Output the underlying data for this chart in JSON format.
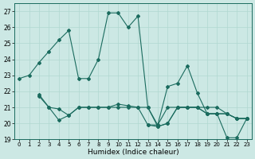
{
  "xlabel": "Humidex (Indice chaleur)",
  "bg_color": "#cce8e4",
  "line_color": "#1a6b5e",
  "grid_color": "#b0d8d0",
  "ylim": [
    19,
    27.5
  ],
  "xlim": [
    -0.5,
    23.5
  ],
  "yticks": [
    19,
    20,
    21,
    22,
    23,
    24,
    25,
    26,
    27
  ],
  "xticks": [
    0,
    1,
    2,
    3,
    4,
    5,
    6,
    7,
    8,
    9,
    10,
    11,
    12,
    13,
    14,
    15,
    16,
    17,
    18,
    19,
    20,
    21,
    22,
    23
  ],
  "series": [
    {
      "x": [
        0,
        1,
        2,
        3,
        4,
        5,
        6,
        7,
        8,
        9,
        10,
        11,
        12,
        13,
        14,
        15,
        16,
        17,
        18,
        19,
        20,
        21,
        22,
        23
      ],
      "y": [
        22.8,
        23.0,
        23.8,
        24.5,
        25.2,
        25.8,
        22.8,
        22.8,
        24.0,
        26.9,
        26.9,
        26.0,
        26.7,
        21.0,
        19.8,
        20.0,
        21.0,
        21.0,
        21.0,
        21.0,
        21.0,
        20.6,
        20.3,
        20.3
      ]
    },
    {
      "x": [
        2,
        3,
        4,
        5,
        6,
        7,
        8,
        9,
        10,
        11,
        12,
        13,
        14,
        15,
        16,
        17,
        18,
        19,
        20,
        21,
        22,
        23
      ],
      "y": [
        21.8,
        21.0,
        20.2,
        20.5,
        21.0,
        21.0,
        21.0,
        21.0,
        21.0,
        21.0,
        21.0,
        19.9,
        19.9,
        21.0,
        21.0,
        21.0,
        21.0,
        20.6,
        20.6,
        20.6,
        20.3,
        20.3
      ]
    },
    {
      "x": [
        2,
        3,
        4,
        5,
        6,
        7,
        8,
        9,
        10,
        11,
        12,
        13,
        14,
        15,
        16,
        17,
        18,
        19,
        20,
        21,
        22,
        23
      ],
      "y": [
        21.7,
        21.0,
        20.9,
        20.5,
        21.0,
        21.0,
        21.0,
        21.0,
        21.2,
        21.1,
        21.0,
        21.0,
        19.9,
        22.3,
        22.5,
        23.6,
        21.9,
        20.6,
        20.6,
        20.6,
        20.3,
        20.3
      ]
    },
    {
      "x": [
        13,
        14,
        15,
        16,
        17,
        18,
        19,
        20,
        21,
        22,
        23
      ],
      "y": [
        19.9,
        19.8,
        20.0,
        21.0,
        21.0,
        21.0,
        20.6,
        20.6,
        19.1,
        19.1,
        20.3
      ]
    }
  ]
}
